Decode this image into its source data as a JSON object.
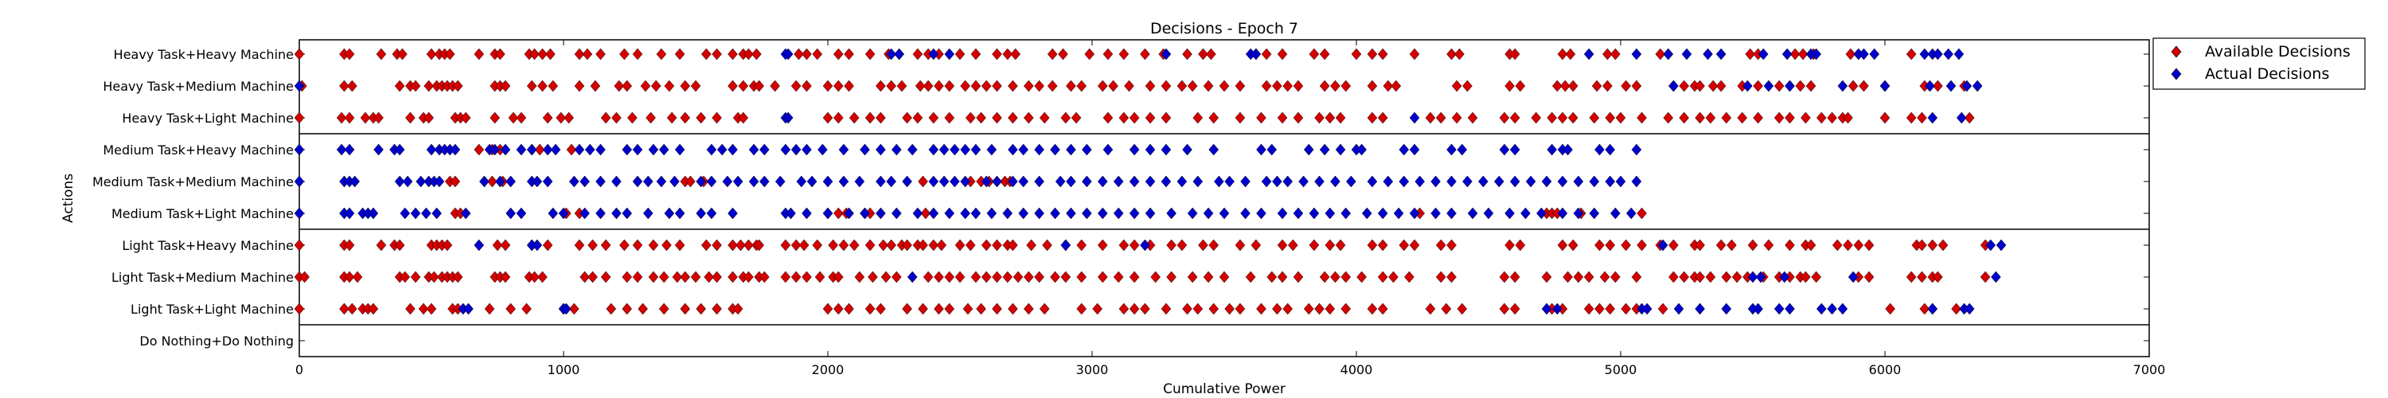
{
  "chart_data": {
    "type": "scatter",
    "title": "Decisions - Epoch 7",
    "xlabel": "Cumulative Power",
    "ylabel": "Actions",
    "xlim": [
      0,
      7000
    ],
    "xticks": [
      0,
      1000,
      2000,
      3000,
      4000,
      5000,
      6000,
      7000
    ],
    "grid": false,
    "legend_position": "outside-top-right",
    "categories": [
      "Heavy Task+Heavy Machine",
      "Heavy Task+Medium Machine",
      "Heavy Task+Light Machine",
      "Medium Task+Heavy Machine",
      "Medium Task+Medium Machine",
      "Medium Task+Light Machine",
      "Light Task+Heavy Machine",
      "Light Task+Medium Machine",
      "Light Task+Light Machine",
      "Do Nothing+Do Nothing"
    ],
    "group_separators_after": [
      2,
      5,
      8
    ],
    "series": [
      {
        "name": "Available Decisions",
        "color": "#d40000",
        "marker": "diamond",
        "rows": [
          [
            0,
            170,
            190,
            310,
            370,
            390,
            500,
            530,
            550,
            570,
            680,
            740,
            760,
            870,
            890,
            920,
            950,
            1060,
            1090,
            1140,
            1230,
            1280,
            1370,
            1440,
            1540,
            1580,
            1640,
            1680,
            1700,
            1730,
            1890,
            1920,
            1960,
            2040,
            2080,
            2160,
            2230,
            2270,
            2340,
            2380,
            2420,
            2500,
            2560,
            2640,
            2680,
            2710,
            2850,
            2890,
            2990,
            3060,
            3120,
            3200,
            3270,
            3360,
            3420,
            3450,
            3620,
            3660,
            3720,
            3840,
            3880,
            4000,
            4060,
            4100,
            4220,
            4360,
            4390,
            4580,
            4600,
            4780,
            4810,
            4950,
            4980,
            5150,
            5180,
            5490,
            5520,
            5660,
            5690,
            5730,
            5870,
            5900,
            6100
          ],
          [
            10,
            170,
            200,
            380,
            420,
            440,
            490,
            520,
            540,
            560,
            580,
            600,
            740,
            760,
            780,
            880,
            920,
            960,
            1060,
            1120,
            1210,
            1240,
            1310,
            1350,
            1400,
            1460,
            1500,
            1640,
            1680,
            1720,
            1740,
            1800,
            1880,
            1920,
            2000,
            2040,
            2080,
            2200,
            2240,
            2280,
            2350,
            2380,
            2420,
            2460,
            2520,
            2560,
            2600,
            2640,
            2700,
            2760,
            2800,
            2850,
            2920,
            2960,
            3040,
            3080,
            3140,
            3220,
            3280,
            3340,
            3380,
            3440,
            3500,
            3560,
            3660,
            3700,
            3740,
            3780,
            3880,
            3920,
            3960,
            4060,
            4120,
            4150,
            4380,
            4420,
            4580,
            4620,
            4760,
            4790,
            4820,
            4910,
            4950,
            5020,
            5060,
            5200,
            5240,
            5280,
            5300,
            5350,
            5380,
            5460,
            5520,
            5600,
            5640,
            5680,
            5720,
            5880,
            5920,
            6000,
            6150,
            6200,
            6300
          ],
          [
            0,
            160,
            190,
            250,
            280,
            300,
            420,
            470,
            490,
            590,
            610,
            630,
            740,
            810,
            840,
            940,
            990,
            1020,
            1160,
            1200,
            1260,
            1330,
            1410,
            1460,
            1520,
            1580,
            1660,
            1680,
            2000,
            2040,
            2100,
            2160,
            2200,
            2300,
            2340,
            2400,
            2460,
            2540,
            2580,
            2640,
            2700,
            2760,
            2820,
            2900,
            2940,
            3060,
            3120,
            3160,
            3220,
            3280,
            3400,
            3460,
            3560,
            3640,
            3720,
            3780,
            3860,
            3900,
            3940,
            4060,
            4100,
            4280,
            4320,
            4380,
            4440,
            4560,
            4600,
            4680,
            4740,
            4780,
            4820,
            4900,
            4960,
            5000,
            5080,
            5180,
            5240,
            5300,
            5340,
            5400,
            5460,
            5520,
            5600,
            5640,
            5700,
            5760,
            5800,
            5840,
            5860,
            6000,
            6100,
            6140,
            6320
          ],
          [
            680,
            730,
            760,
            880,
            910,
            1030
          ],
          [
            570,
            590,
            730,
            770,
            1460,
            1480,
            1530,
            2360,
            2540,
            2580,
            2610,
            2670,
            2690
          ],
          [
            590,
            610,
            1010,
            1060,
            2000,
            2040,
            2070,
            2140,
            2160,
            2370,
            4240,
            4720,
            4740,
            4760,
            4850,
            5080
          ],
          [
            0,
            170,
            190,
            310,
            360,
            380,
            500,
            520,
            540,
            560,
            750,
            780,
            880,
            940,
            1060,
            1110,
            1160,
            1230,
            1280,
            1340,
            1390,
            1440,
            1540,
            1580,
            1640,
            1670,
            1700,
            1730,
            1740,
            1840,
            1880,
            1910,
            1960,
            2020,
            2060,
            2100,
            2160,
            2210,
            2240,
            2280,
            2300,
            2340,
            2360,
            2400,
            2430,
            2500,
            2540,
            2600,
            2640,
            2680,
            2700,
            2770,
            2830,
            2900,
            2960,
            3040,
            3120,
            3160,
            3220,
            3300,
            3340,
            3420,
            3460,
            3560,
            3620,
            3720,
            3760,
            3840,
            3900,
            3940,
            4060,
            4100,
            4180,
            4220,
            4320,
            4360,
            4580,
            4620,
            4780,
            4820,
            4920,
            4960,
            5020,
            5080,
            5150,
            5200,
            5280,
            5300,
            5380,
            5420,
            5500,
            5560,
            5640,
            5700,
            5720,
            5820,
            5860,
            5900,
            5940,
            6120,
            6140,
            6180,
            6220,
            6380
          ],
          [
            0,
            20,
            170,
            190,
            220,
            380,
            400,
            440,
            490,
            510,
            540,
            560,
            580,
            600,
            740,
            760,
            780,
            870,
            890,
            920,
            1080,
            1110,
            1160,
            1240,
            1280,
            1340,
            1380,
            1430,
            1460,
            1500,
            1550,
            1580,
            1640,
            1680,
            1700,
            1740,
            1760,
            1840,
            1880,
            1920,
            1970,
            2020,
            2040,
            2120,
            2170,
            2220,
            2260,
            2380,
            2420,
            2460,
            2500,
            2560,
            2600,
            2640,
            2680,
            2720,
            2760,
            2800,
            2860,
            2900,
            2960,
            3040,
            3100,
            3160,
            3240,
            3300,
            3380,
            3440,
            3500,
            3600,
            3680,
            3720,
            3780,
            3880,
            3920,
            3960,
            4020,
            4100,
            4140,
            4200,
            4320,
            4360,
            4560,
            4600,
            4720,
            4800,
            4840,
            4880,
            4940,
            4980,
            5060,
            5200,
            5240,
            5280,
            5300,
            5340,
            5400,
            5440,
            5480,
            5540,
            5600,
            5640,
            5680,
            5700,
            5740,
            5900,
            5940,
            6100,
            6140,
            6180,
            6200,
            6380
          ],
          [
            0,
            170,
            200,
            240,
            260,
            280,
            420,
            470,
            500,
            580,
            600,
            720,
            800,
            860,
            1000,
            1040,
            1180,
            1240,
            1300,
            1380,
            1460,
            1520,
            1580,
            1640,
            1660,
            2000,
            2040,
            2080,
            2160,
            2200,
            2300,
            2360,
            2420,
            2460,
            2530,
            2580,
            2640,
            2700,
            2760,
            2820,
            2960,
            3020,
            3120,
            3160,
            3200,
            3280,
            3360,
            3400,
            3460,
            3520,
            3560,
            3640,
            3700,
            3740,
            3820,
            3860,
            3900,
            3960,
            4060,
            4100,
            4280,
            4340,
            4400,
            4560,
            4600,
            4740,
            4780,
            4880,
            4920,
            4960,
            5020,
            5060,
            5160,
            6020,
            6150,
            6180,
            6270
          ],
          []
        ]
      },
      {
        "name": "Actual Decisions",
        "color": "#0000cc",
        "marker": "diamond",
        "rows": [
          [
            1840,
            1850,
            2240,
            2270,
            2400,
            2460,
            3280,
            3600,
            3620,
            4880,
            5060,
            5180,
            5250,
            5330,
            5380,
            5540,
            5630,
            5720,
            5740,
            5900,
            5920,
            5960,
            6150,
            6180,
            6200,
            6240,
            6280
          ],
          [
            0,
            5200,
            5480,
            5560,
            5640,
            5840,
            6000,
            6170,
            6250,
            6310,
            6350
          ],
          [
            1840,
            1850,
            4220,
            6180,
            6290
          ],
          [
            0,
            160,
            190,
            300,
            360,
            380,
            500,
            530,
            550,
            570,
            590,
            720,
            740,
            780,
            840,
            880,
            940,
            970,
            1060,
            1100,
            1140,
            1240,
            1280,
            1340,
            1380,
            1440,
            1560,
            1600,
            1640,
            1720,
            1760,
            1840,
            1880,
            1920,
            1980,
            2060,
            2140,
            2200,
            2260,
            2320,
            2400,
            2440,
            2480,
            2520,
            2560,
            2620,
            2700,
            2740,
            2800,
            2860,
            2920,
            2980,
            3060,
            3160,
            3220,
            3280,
            3360,
            3460,
            3640,
            3680,
            3820,
            3880,
            3940,
            4000,
            4020,
            4180,
            4220,
            4360,
            4400,
            4560,
            4600,
            4740,
            4780,
            4800,
            4920,
            4960,
            5060
          ],
          [
            0,
            170,
            190,
            210,
            380,
            410,
            460,
            490,
            510,
            530,
            700,
            760,
            800,
            880,
            900,
            940,
            1040,
            1080,
            1140,
            1200,
            1280,
            1320,
            1370,
            1420,
            1520,
            1560,
            1620,
            1660,
            1720,
            1760,
            1820,
            1900,
            1940,
            2000,
            2060,
            2120,
            2200,
            2240,
            2300,
            2400,
            2440,
            2480,
            2520,
            2600,
            2640,
            2700,
            2740,
            2800,
            2880,
            2920,
            2980,
            3040,
            3100,
            3160,
            3220,
            3280,
            3340,
            3400,
            3480,
            3520,
            3580,
            3660,
            3700,
            3740,
            3800,
            3860,
            3920,
            3980,
            4060,
            4120,
            4180,
            4240,
            4300,
            4360,
            4420,
            4480,
            4540,
            4600,
            4660,
            4720,
            4780,
            4840,
            4900,
            4960,
            5000,
            5060
          ],
          [
            0,
            170,
            190,
            240,
            260,
            280,
            400,
            440,
            480,
            520,
            630,
            800,
            840,
            960,
            1000,
            1080,
            1140,
            1200,
            1240,
            1320,
            1400,
            1440,
            1520,
            1560,
            1640,
            1840,
            1860,
            1920,
            2000,
            2080,
            2140,
            2200,
            2260,
            2340,
            2400,
            2460,
            2520,
            2560,
            2620,
            2680,
            2740,
            2800,
            2860,
            2920,
            2980,
            3040,
            3100,
            3160,
            3220,
            3300,
            3380,
            3440,
            3500,
            3580,
            3640,
            3720,
            3780,
            3840,
            3900,
            3960,
            4040,
            4100,
            4160,
            4220,
            4300,
            4360,
            4440,
            4500,
            4580,
            4640,
            4700,
            4780,
            4840,
            4900,
            4980,
            5040
          ],
          [
            680,
            880,
            900,
            2900,
            3200,
            5160,
            6400,
            6440
          ],
          [
            2320,
            5500,
            5530,
            5620,
            5880,
            6420
          ],
          [
            620,
            640,
            1000,
            1010,
            4720,
            4760,
            5080,
            5100,
            5220,
            5300,
            5400,
            5500,
            5520,
            5600,
            5640,
            5760,
            5800,
            5840,
            6180,
            6300,
            6320
          ],
          []
        ]
      }
    ]
  }
}
